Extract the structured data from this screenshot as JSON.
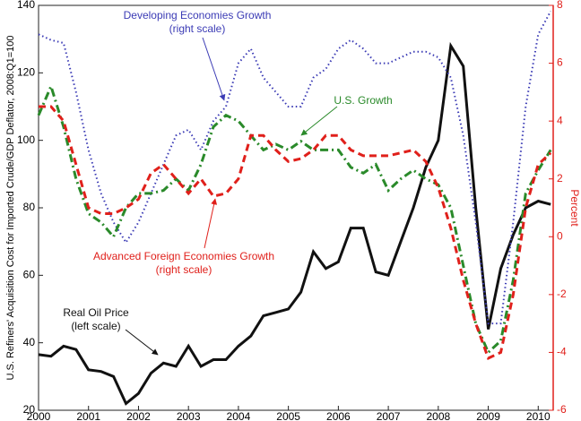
{
  "chart_data": {
    "type": "line",
    "ylabel": "U.S. Refiners' Acquisition Cost for Imported Crude/GDP Deflator, 2008:Q1=100",
    "y2label": "Percent",
    "x": [
      2000,
      2000.25,
      2000.5,
      2000.75,
      2001,
      2001.25,
      2001.5,
      2001.75,
      2002,
      2002.25,
      2002.5,
      2002.75,
      2003,
      2003.25,
      2003.5,
      2003.75,
      2004,
      2004.25,
      2004.5,
      2004.75,
      2005,
      2005.25,
      2005.5,
      2005.75,
      2006,
      2006.25,
      2006.5,
      2006.75,
      2007,
      2007.25,
      2007.5,
      2007.75,
      2008,
      2008.25,
      2008.5,
      2008.75,
      2009,
      2009.25,
      2009.5,
      2009.75,
      2010,
      2010.25
    ],
    "xlim": [
      2000,
      2010.3
    ],
    "xticks": [
      2000,
      2001,
      2002,
      2003,
      2004,
      2005,
      2006,
      2007,
      2008,
      2009,
      2010
    ],
    "ylim": [
      20,
      140
    ],
    "yticks": [
      20,
      40,
      60,
      80,
      100,
      120,
      140
    ],
    "y2lim": [
      -6,
      8
    ],
    "y2ticks": [
      -6,
      -4,
      -2,
      0,
      2,
      4,
      6,
      8
    ],
    "y2color": "#e0201b",
    "series": [
      {
        "name": "Real Oil Price",
        "note": "(left scale)",
        "color": "#111111",
        "style": "solid",
        "axis": "y",
        "values": [
          36.5,
          36,
          39,
          38,
          32,
          31.5,
          30,
          22,
          25,
          31,
          34,
          33,
          39,
          33,
          35,
          35,
          39,
          42,
          48,
          49,
          50,
          55,
          67,
          62,
          64,
          74,
          74,
          61,
          60,
          70,
          80,
          92,
          100,
          128,
          122,
          80,
          44,
          62,
          72,
          80,
          82,
          81
        ]
      },
      {
        "name": "Developing Economies Growth",
        "note": "(right scale)",
        "color": "#3b3bb5",
        "style": "dotted",
        "axis": "y2",
        "values": [
          7.0,
          6.8,
          6.7,
          5.0,
          3.0,
          1.5,
          0.5,
          -0.2,
          0.5,
          1.5,
          2.5,
          3.5,
          3.7,
          3.0,
          4.0,
          4.5,
          6.0,
          6.5,
          5.5,
          5.0,
          4.5,
          4.5,
          5.5,
          5.8,
          6.5,
          6.8,
          6.5,
          6.0,
          6.0,
          6.2,
          6.4,
          6.4,
          6.2,
          5.5,
          3.5,
          0.5,
          -3.0,
          -3.0,
          0.5,
          4.5,
          7.0,
          7.8
        ]
      },
      {
        "name": "U.S. Growth",
        "color": "#2a8a2a",
        "style": "dashdot",
        "axis": "y2",
        "values": [
          4.2,
          5.2,
          3.8,
          2.0,
          0.8,
          0.5,
          0.0,
          1.0,
          1.5,
          1.5,
          1.6,
          2.0,
          1.6,
          2.5,
          3.8,
          4.2,
          4.0,
          3.5,
          3.0,
          3.2,
          3.0,
          3.3,
          3.0,
          3.0,
          3.0,
          2.4,
          2.2,
          2.5,
          1.6,
          2.0,
          2.3,
          2.0,
          1.8,
          1.0,
          -1.0,
          -3.0,
          -4.0,
          -3.6,
          -1.5,
          1.5,
          2.3,
          3.0
        ]
      },
      {
        "name": "Advanced Foreign Economies Growth",
        "note": "(right scale)",
        "color": "#e0201b",
        "style": "dashed",
        "axis": "y2",
        "values": [
          4.5,
          4.5,
          4.0,
          2.5,
          1.0,
          0.8,
          0.8,
          1.0,
          1.3,
          2.2,
          2.5,
          2.0,
          1.5,
          2.0,
          1.4,
          1.5,
          2.0,
          3.5,
          3.5,
          3.0,
          2.6,
          2.7,
          3.0,
          3.5,
          3.5,
          3.0,
          2.8,
          2.8,
          2.8,
          2.9,
          3.0,
          2.6,
          1.7,
          0.3,
          -1.5,
          -3.0,
          -4.2,
          -4.0,
          -2.0,
          1.0,
          2.5,
          2.9
        ]
      }
    ]
  }
}
